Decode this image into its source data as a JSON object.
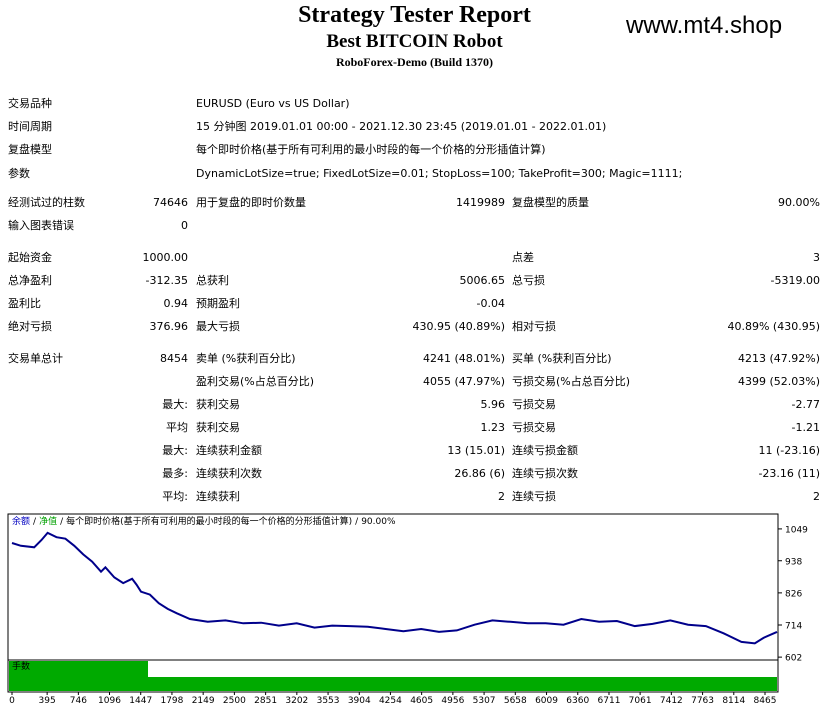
{
  "header": {
    "title": "Strategy Tester Report",
    "subtitle": "Best BITCOIN Robot",
    "server": "RoboForex-Demo (Build 1370)",
    "watermark": "www.mt4.shop"
  },
  "info": [
    {
      "label": "交易品种",
      "value": "EURUSD (Euro vs US Dollar)"
    },
    {
      "label": "时间周期",
      "value": "15 分钟图 2019.01.01 00:00 - 2021.12.30 23:45 (2019.01.01 - 2022.01.01)"
    },
    {
      "label": "复盘模型",
      "value": "每个即时价格(基于所有可利用的最小时段的每一个价格的分形插值计算)"
    },
    {
      "label": "参数",
      "value": "DynamicLotSize=true; FixedLotSize=0.01; StopLoss=100; TakeProfit=300; Magic=1111;"
    }
  ],
  "stats": [
    {
      "c1": "经测试过的柱数",
      "c2": "74646",
      "c3": "用于复盘的即时价数量",
      "c4": "1419989",
      "c5": "复盘模型的质量",
      "c6": "90.00%"
    },
    {
      "c1": "输入图表错误",
      "c2": "0"
    },
    {
      "c1": "起始资金",
      "c2": "1000.00",
      "c5": "点差",
      "c6": "3"
    },
    {
      "c1": "总净盈利",
      "c2": "-312.35",
      "c3": "总获利",
      "c4": "5006.65",
      "c5": "总亏损",
      "c6": "-5319.00"
    },
    {
      "c1": "盈利比",
      "c2": "0.94",
      "c3": "预期盈利",
      "c4": "-0.04"
    },
    {
      "c1": "绝对亏损",
      "c2": "376.96",
      "c3": "最大亏损",
      "c4": "430.95 (40.89%)",
      "c5": "相对亏损",
      "c6": "40.89% (430.95)"
    },
    {
      "c1": "交易单总计",
      "c2": "8454",
      "c3": "卖单 (%获利百分比)",
      "c4": "4241 (48.01%)",
      "c5": "买单 (%获利百分比)",
      "c6": "4213 (47.92%)"
    },
    {
      "c3": "盈利交易(%占总百分比)",
      "c4": "4055 (47.97%)",
      "c5": "亏损交易(%占总百分比)",
      "c6": "4399 (52.03%)"
    },
    {
      "c2": "最大:",
      "c3": "获利交易",
      "c4": "5.96",
      "c5": "亏损交易",
      "c6": "-2.77"
    },
    {
      "c2": "平均",
      "c3": "获利交易",
      "c4": "1.23",
      "c5": "亏损交易",
      "c6": "-1.21"
    },
    {
      "c2": "最大:",
      "c3": "连续获利金额",
      "c4": "13 (15.01)",
      "c5": "连续亏损金额",
      "c6": "11 (-23.16)"
    },
    {
      "c2": "最多:",
      "c3": "连续获利次数",
      "c4": "26.86 (6)",
      "c5": "连续亏损次数",
      "c6": "-23.16 (11)"
    },
    {
      "c2": "平均:",
      "c3": "连续获利",
      "c4": "2",
      "c5": "连续亏损",
      "c6": "2"
    }
  ],
  "chart_data": {
    "type": "line",
    "legend": [
      "余额",
      "净值",
      "每个即时价格(基于所有可利用的最小时段的每一个价格的分形插值计算)",
      "90.00%"
    ],
    "legend_colors": [
      "#0000c0",
      "#00a000",
      "#000000",
      "#000000"
    ],
    "separator": "/",
    "volume_label": "手数",
    "x": [
      0,
      100,
      250,
      330,
      400,
      500,
      600,
      700,
      800,
      900,
      1000,
      1050,
      1150,
      1250,
      1350,
      1400,
      1450,
      1550,
      1650,
      1750,
      1850,
      2000,
      2200,
      2400,
      2600,
      2800,
      3000,
      3200,
      3400,
      3600,
      3800,
      4000,
      4200,
      4400,
      4600,
      4800,
      5000,
      5200,
      5400,
      5600,
      5800,
      6000,
      6200,
      6400,
      6600,
      6800,
      7000,
      7200,
      7400,
      7600,
      7800,
      8000,
      8200,
      8350,
      8454,
      8600
    ],
    "series": [
      {
        "name": "余额",
        "color": "#00008b",
        "values": [
          1000,
          990,
          985,
          1010,
          1035,
          1020,
          1015,
          990,
          960,
          935,
          900,
          915,
          880,
          860,
          875,
          855,
          830,
          820,
          790,
          770,
          755,
          735,
          725,
          730,
          720,
          722,
          712,
          720,
          705,
          712,
          710,
          708,
          700,
          692,
          700,
          690,
          695,
          715,
          730,
          725,
          720,
          720,
          715,
          735,
          725,
          728,
          710,
          718,
          730,
          715,
          710,
          685,
          655,
          650,
          670,
          690
        ]
      }
    ],
    "xlim": [
      0,
      8611
    ],
    "ylim": [
      585,
      1101
    ],
    "xticks": [
      0,
      395,
      746,
      1096,
      1447,
      1798,
      2149,
      2500,
      2851,
      3202,
      3553,
      3904,
      4254,
      4605,
      4956,
      5307,
      5658,
      6009,
      6360,
      6711,
      7061,
      7412,
      7763,
      8114,
      8465
    ],
    "yticks": [
      602,
      714,
      826,
      938,
      1049
    ]
  }
}
